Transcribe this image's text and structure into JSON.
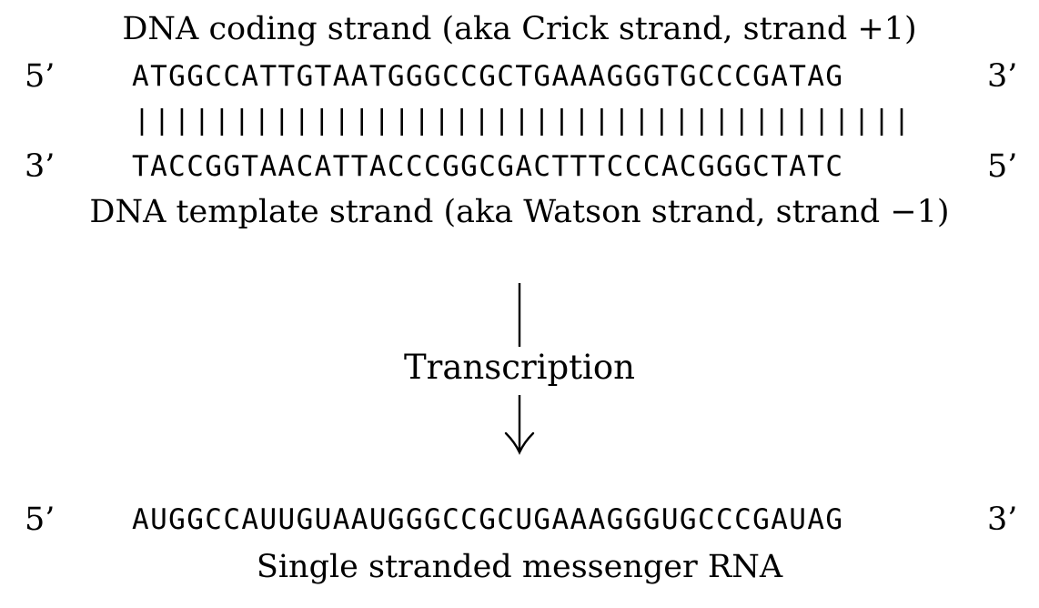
{
  "coding_strand": {
    "caption": "DNA coding strand (aka Crick strand, strand +1)",
    "end_left": "5’",
    "sequence": "ATGGCCATTGTAATGGGCCGCTGAAAGGGTGCCCGATAG",
    "end_right": "3’"
  },
  "template_strand": {
    "end_left": "3’",
    "sequence": "TACCGGTAACATTACCCGGCGACTTTCCCACGGGCTATC",
    "end_right": "5’",
    "caption": "DNA template strand (aka Watson strand, strand −1)"
  },
  "process": {
    "label": "Transcription"
  },
  "mrna": {
    "end_left": "5’",
    "sequence": "AUGGCCAUUGUAAUGGGCCGCUGAAAGGGUGCCCGAUAG",
    "end_right": "3’",
    "caption": "Single stranded messenger RNA"
  }
}
